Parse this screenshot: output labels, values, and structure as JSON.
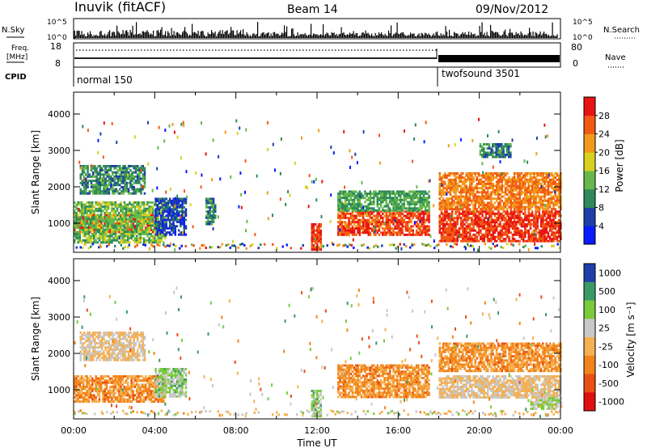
{
  "header": {
    "title": "Inuvik (fitACF)",
    "beam": "Beam 14",
    "date": "09/Nov/2012"
  },
  "meta_panel": {
    "nsky_label": "N.Sky",
    "nsky_ticks": [
      "10^5",
      "10^0"
    ],
    "nsearch_label": "N.Search",
    "nsearch_ticks": [
      "10^5",
      "10^0"
    ],
    "freq_label_1": "Freq.",
    "freq_label_2": "[MHz]",
    "freq_ticks": [
      "18",
      "8"
    ],
    "nave_label": "Nave",
    "nave_ticks": [
      "80",
      "0"
    ],
    "cpid_label": "CPID",
    "cpid_segments": [
      {
        "label": "normal 150",
        "start_hour": 0
      },
      {
        "label": "twofsound 3501",
        "start_hour": 18
      }
    ]
  },
  "chart_data": [
    {
      "type": "heatmap",
      "title": "",
      "xlabel": "",
      "ylabel": "Slant Range [km]",
      "xlim": [
        0,
        24
      ],
      "ylim": [
        200,
        4600
      ],
      "x_ticks": [
        "00:00",
        "04:00",
        "08:00",
        "12:00",
        "16:00",
        "20:00",
        "00:00"
      ],
      "y_ticks": [
        1000,
        2000,
        3000,
        4000
      ],
      "colorbar": {
        "label": "Power [dB]",
        "ticks": [
          4,
          8,
          12,
          16,
          20,
          24,
          28
        ],
        "colors": [
          "#0a1aff",
          "#1f3fa8",
          "#2e8a5a",
          "#66b84a",
          "#d8d020",
          "#f29a1a",
          "#f25a14",
          "#e81414"
        ]
      },
      "patches": [
        {
          "x0": 0.0,
          "x1": 4.0,
          "y0": 750,
          "y1": 1250,
          "value": 28
        },
        {
          "x0": 0.0,
          "x1": 4.5,
          "y0": 500,
          "y1": 1600,
          "value": 14
        },
        {
          "x0": 0.3,
          "x1": 3.5,
          "y0": 1800,
          "y1": 2600,
          "value": 10
        },
        {
          "x0": 4.0,
          "x1": 5.5,
          "y0": 700,
          "y1": 1700,
          "value": 6
        },
        {
          "x0": 6.5,
          "x1": 7.0,
          "y0": 1000,
          "y1": 1700,
          "value": 10
        },
        {
          "x0": 11.7,
          "x1": 12.2,
          "y0": 300,
          "y1": 1000,
          "value": 28
        },
        {
          "x0": 13.0,
          "x1": 17.5,
          "y0": 700,
          "y1": 1350,
          "value": 27
        },
        {
          "x0": 13.0,
          "x1": 17.5,
          "y0": 1350,
          "y1": 1900,
          "value": 12
        },
        {
          "x0": 18.0,
          "x1": 24.0,
          "y0": 500,
          "y1": 1350,
          "value": 28
        },
        {
          "x0": 18.0,
          "x1": 24.0,
          "y0": 1400,
          "y1": 2400,
          "value": 24
        },
        {
          "x0": 20.0,
          "x1": 21.5,
          "y0": 2800,
          "y1": 3200,
          "value": 10
        }
      ]
    },
    {
      "type": "heatmap",
      "title": "",
      "xlabel": "Time UT",
      "ylabel": "Slant Range [km]",
      "xlim": [
        0,
        24
      ],
      "ylim": [
        200,
        4600
      ],
      "x_ticks": [
        "00:00",
        "04:00",
        "08:00",
        "12:00",
        "16:00",
        "20:00",
        "00:00"
      ],
      "y_ticks": [
        1000,
        2000,
        3000,
        4000
      ],
      "colorbar": {
        "label": "Velocity [m s⁻¹]",
        "ticks": [
          "1000",
          "500",
          "100",
          "25",
          "-25",
          "-100",
          "-500",
          "-1000"
        ],
        "colors": [
          "#1f3fa8",
          "#3a9a64",
          "#7acb3c",
          "#c8c8c8",
          "#f5b052",
          "#f2841a",
          "#e85014",
          "#e01010"
        ]
      },
      "patches": [
        {
          "x0": 0.0,
          "x1": 4.5,
          "y0": 700,
          "y1": 1400,
          "value": -300
        },
        {
          "x0": 0.3,
          "x1": 3.5,
          "y0": 1800,
          "y1": 2600,
          "value": 0
        },
        {
          "x0": 4.0,
          "x1": 5.5,
          "y0": 800,
          "y1": 1600,
          "value": 300
        },
        {
          "x0": 11.7,
          "x1": 12.2,
          "y0": 300,
          "y1": 1000,
          "value": 300
        },
        {
          "x0": 13.0,
          "x1": 17.5,
          "y0": 800,
          "y1": 1700,
          "value": -300
        },
        {
          "x0": 18.0,
          "x1": 24.0,
          "y0": 800,
          "y1": 1400,
          "value": 0
        },
        {
          "x0": 18.0,
          "x1": 24.0,
          "y0": 1500,
          "y1": 2300,
          "value": -300
        },
        {
          "x0": 22.5,
          "x1": 24.0,
          "y0": 500,
          "y1": 800,
          "value": 200
        }
      ]
    }
  ]
}
